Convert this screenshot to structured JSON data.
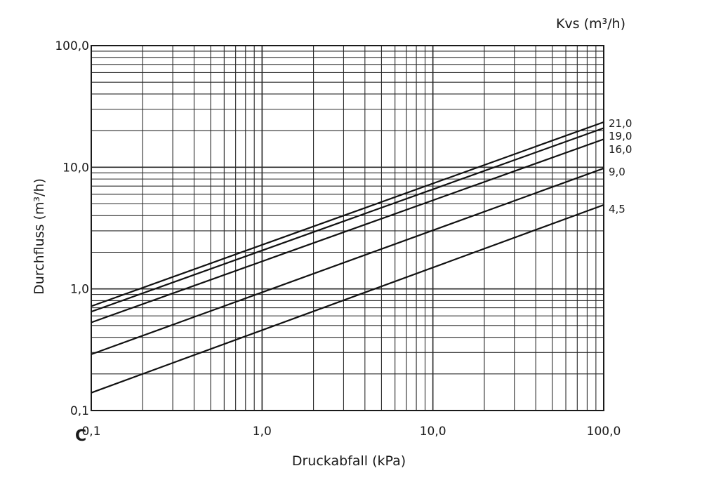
{
  "chart_data": {
    "type": "line",
    "scale": "log-log",
    "grid": true,
    "xlabel": "Druckabfall (kPa)",
    "ylabel": "Durchfluss (m³/h)",
    "legend_title": "Kvs (m³/h)",
    "corner_label": "C",
    "xlim": [
      0.1,
      100
    ],
    "ylim": [
      0.1,
      100
    ],
    "x_tick_labels": [
      "0,1",
      "1,0",
      "10,0",
      "100,0"
    ],
    "y_tick_labels": [
      "0,1",
      "1,0",
      "10,0",
      "100,0"
    ],
    "x_ticks": [
      0.1,
      1,
      10,
      100
    ],
    "y_ticks": [
      0.1,
      1,
      10,
      100
    ],
    "series": [
      {
        "name": "21,0",
        "x": [
          0.1,
          100
        ],
        "y": [
          0.72,
          23.5
        ]
      },
      {
        "name": "19,0",
        "x": [
          0.1,
          100
        ],
        "y": [
          0.65,
          21
        ]
      },
      {
        "name": "16,0",
        "x": [
          0.1,
          100
        ],
        "y": [
          0.53,
          17
        ]
      },
      {
        "name": "9,0",
        "x": [
          0.1,
          100
        ],
        "y": [
          0.29,
          9.8
        ]
      },
      {
        "name": "4,5",
        "x": [
          0.1,
          100
        ],
        "y": [
          0.14,
          4.9
        ]
      }
    ]
  }
}
